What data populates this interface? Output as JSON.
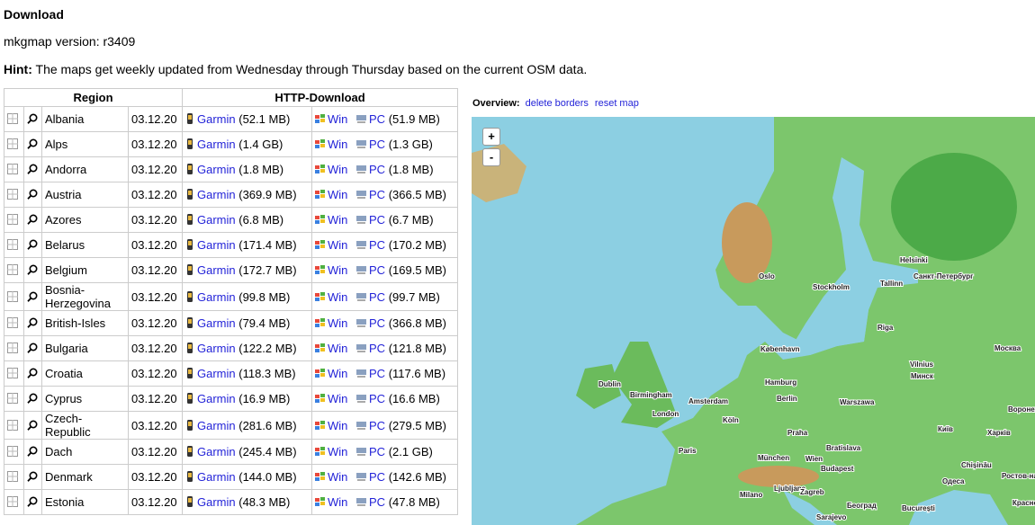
{
  "header": {
    "title": "Download",
    "version": "mkgmap version: r3409",
    "hint_label": "Hint:",
    "hint_text": "The maps get weekly updated from Wednesday through Thursday based on the current OSM data."
  },
  "table": {
    "headers": [
      "Region",
      "HTTP-Download"
    ],
    "link_labels": {
      "garmin": "Garmin",
      "win": "Win",
      "pc": "PC"
    },
    "rows": [
      {
        "region": "Albania",
        "date": "03.12.20",
        "garmin_size": "(52.1 MB)",
        "pc_size": "(51.9 MB)"
      },
      {
        "region": "Alps",
        "date": "03.12.20",
        "garmin_size": "(1.4 GB)",
        "pc_size": "(1.3 GB)"
      },
      {
        "region": "Andorra",
        "date": "03.12.20",
        "garmin_size": "(1.8 MB)",
        "pc_size": "(1.8 MB)"
      },
      {
        "region": "Austria",
        "date": "03.12.20",
        "garmin_size": "(369.9 MB)",
        "pc_size": "(366.5 MB)"
      },
      {
        "region": "Azores",
        "date": "03.12.20",
        "garmin_size": "(6.8 MB)",
        "pc_size": "(6.7 MB)"
      },
      {
        "region": "Belarus",
        "date": "03.12.20",
        "garmin_size": "(171.4 MB)",
        "pc_size": "(170.2 MB)"
      },
      {
        "region": "Belgium",
        "date": "03.12.20",
        "garmin_size": "(172.7 MB)",
        "pc_size": "(169.5 MB)"
      },
      {
        "region": "Bosnia-Herzegovina",
        "date": "03.12.20",
        "garmin_size": "(99.8 MB)",
        "pc_size": "(99.7 MB)"
      },
      {
        "region": "British-Isles",
        "date": "03.12.20",
        "garmin_size": "(79.4 MB)",
        "pc_size": "(366.8 MB)"
      },
      {
        "region": "Bulgaria",
        "date": "03.12.20",
        "garmin_size": "(122.2 MB)",
        "pc_size": "(121.8 MB)"
      },
      {
        "region": "Croatia",
        "date": "03.12.20",
        "garmin_size": "(118.3 MB)",
        "pc_size": "(117.6 MB)"
      },
      {
        "region": "Cyprus",
        "date": "03.12.20",
        "garmin_size": "(16.9 MB)",
        "pc_size": "(16.6 MB)"
      },
      {
        "region": "Czech-Republic",
        "date": "03.12.20",
        "garmin_size": "(281.6 MB)",
        "pc_size": "(279.5 MB)"
      },
      {
        "region": "Dach",
        "date": "03.12.20",
        "garmin_size": "(245.4 MB)",
        "pc_size": "(2.1 GB)"
      },
      {
        "region": "Denmark",
        "date": "03.12.20",
        "garmin_size": "(144.0 MB)",
        "pc_size": "(142.6 MB)"
      },
      {
        "region": "Estonia",
        "date": "03.12.20",
        "garmin_size": "(48.3 MB)",
        "pc_size": "(47.8 MB)"
      }
    ]
  },
  "map": {
    "overview_label": "Overview:",
    "delete_borders": "delete borders",
    "reset_map": "reset map",
    "zoom_in": "+",
    "zoom_out": "-",
    "cities": [
      "Helsinki",
      "Санкт-Петербург",
      "Oslo",
      "Stockholm",
      "Tallinn",
      "Riga",
      "København",
      "Москва",
      "Vilnius",
      "Минск",
      "Dublin",
      "Birmingham",
      "Hamburg",
      "Amsterdam",
      "Berlin",
      "Warszawa",
      "London",
      "Воронеж",
      "Köln",
      "Київ",
      "Praha",
      "Харків",
      "Paris",
      "Bratislava",
      "München",
      "Wien",
      "Budapest",
      "Chișinău",
      "Ростов-на",
      "Одеса",
      "Milano",
      "Ljubljana",
      "Zagreb",
      "Београд",
      "Краснод",
      "București",
      "Sarajevo"
    ]
  }
}
